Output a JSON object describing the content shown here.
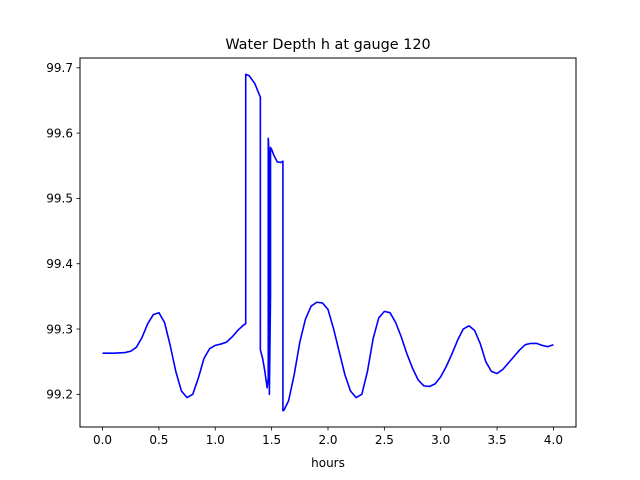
{
  "chart_data": {
    "type": "line",
    "title": "Water Depth h at gauge 120",
    "xlabel": "hours",
    "ylabel": "",
    "xlim": [
      -0.2,
      4.2
    ],
    "ylim": [
      99.15,
      99.715
    ],
    "x_ticks": [
      0.0,
      0.5,
      1.0,
      1.5,
      2.0,
      2.5,
      3.0,
      3.5,
      4.0
    ],
    "x_tick_labels": [
      "0.0",
      "0.5",
      "1.0",
      "1.5",
      "2.0",
      "2.5",
      "3.0",
      "3.5",
      "4.0"
    ],
    "y_ticks": [
      99.2,
      99.3,
      99.4,
      99.5,
      99.6,
      99.7
    ],
    "y_tick_labels": [
      "99.2",
      "99.3",
      "99.4",
      "99.5",
      "99.6",
      "99.7"
    ],
    "grid": false,
    "legend": "none",
    "series": [
      {
        "color": "#0000ff",
        "x": [
          0.0,
          0.1,
          0.2,
          0.25,
          0.3,
          0.35,
          0.4,
          0.45,
          0.5,
          0.55,
          0.6,
          0.65,
          0.7,
          0.75,
          0.8,
          0.85,
          0.9,
          0.95,
          1.0,
          1.05,
          1.1,
          1.15,
          1.2,
          1.25,
          1.27,
          1.27,
          1.3,
          1.35,
          1.4,
          1.4,
          1.42,
          1.44,
          1.46,
          1.47,
          1.47,
          1.48,
          1.48,
          1.49,
          1.49,
          1.5,
          1.52,
          1.55,
          1.58,
          1.6,
          1.6,
          1.61,
          1.65,
          1.7,
          1.75,
          1.8,
          1.85,
          1.9,
          1.95,
          2.0,
          2.05,
          2.1,
          2.15,
          2.2,
          2.25,
          2.3,
          2.35,
          2.4,
          2.45,
          2.5,
          2.55,
          2.6,
          2.65,
          2.7,
          2.75,
          2.8,
          2.85,
          2.9,
          2.95,
          3.0,
          3.05,
          3.1,
          3.15,
          3.2,
          3.25,
          3.3,
          3.35,
          3.4,
          3.45,
          3.5,
          3.55,
          3.6,
          3.65,
          3.7,
          3.75,
          3.8,
          3.85,
          3.9,
          3.95,
          4.0
        ],
        "y": [
          99.263,
          99.263,
          99.264,
          99.266,
          99.272,
          99.287,
          99.308,
          99.322,
          99.325,
          99.31,
          99.275,
          99.235,
          99.205,
          99.195,
          99.2,
          99.225,
          99.255,
          99.27,
          99.275,
          99.277,
          99.28,
          99.288,
          99.298,
          99.306,
          99.308,
          99.69,
          99.688,
          99.676,
          99.655,
          99.268,
          99.255,
          99.235,
          99.21,
          99.225,
          99.592,
          99.56,
          99.2,
          99.35,
          99.578,
          99.575,
          99.566,
          99.556,
          99.555,
          99.557,
          99.175,
          99.176,
          99.19,
          99.23,
          99.28,
          99.315,
          99.335,
          99.341,
          99.34,
          99.33,
          99.3,
          99.265,
          99.23,
          99.205,
          99.195,
          99.2,
          99.235,
          99.285,
          99.317,
          99.327,
          99.325,
          99.31,
          99.288,
          99.262,
          99.24,
          99.222,
          99.213,
          99.212,
          99.216,
          99.227,
          99.243,
          99.262,
          99.283,
          99.3,
          99.305,
          99.298,
          99.278,
          99.25,
          99.235,
          99.232,
          99.238,
          99.248,
          99.258,
          99.268,
          99.276,
          99.278,
          99.278,
          99.275,
          99.273,
          99.276
        ]
      }
    ]
  }
}
